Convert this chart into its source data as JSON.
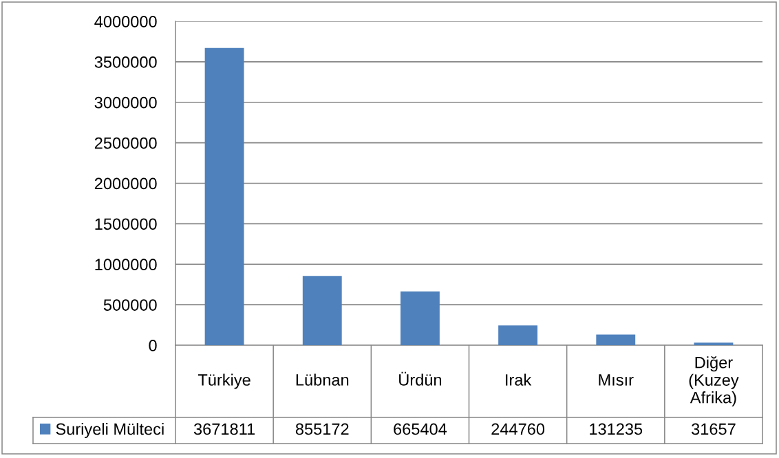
{
  "chart_data": {
    "type": "bar",
    "categories": [
      "Türkiye",
      "Lübnan",
      "Ürdün",
      "Irak",
      "Mısır",
      "Diğer (Kuzey Afrika)"
    ],
    "series": [
      {
        "name": "Suriyeli Mülteci",
        "color": "#4f81bd",
        "values": [
          3671811,
          855172,
          665404,
          244760,
          131235,
          31657
        ]
      }
    ],
    "ylim": [
      0,
      4000000
    ],
    "yticks": [
      0,
      500000,
      1000000,
      1500000,
      2000000,
      2500000,
      3000000,
      3500000,
      4000000
    ],
    "grid": "y",
    "legend": "bottom",
    "data_labels": true
  }
}
